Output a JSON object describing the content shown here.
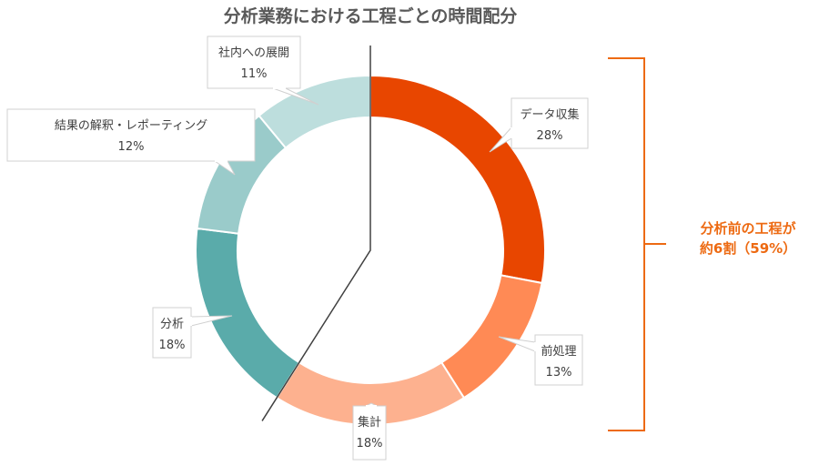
{
  "chart_data": {
    "type": "pie",
    "variant": "donut",
    "title": "分析業務における工程ごとの時間配分",
    "unit": "%",
    "slices": [
      {
        "label": "データ収集",
        "value": 28,
        "color": "#E84600"
      },
      {
        "label": "前処理",
        "value": 13,
        "color": "#FF8A55"
      },
      {
        "label": "集計",
        "value": 18,
        "color": "#FDB18F"
      },
      {
        "label": "分析",
        "value": 18,
        "color": "#5AABAA"
      },
      {
        "label": "結果の解釈・レポーティング",
        "value": 12,
        "color": "#9ACBCA"
      },
      {
        "label": "社内への展開",
        "value": 11,
        "color": "#BDDEDD"
      }
    ],
    "annotation": {
      "lines": [
        "分析前の工程が",
        "約6割（59%）"
      ],
      "covers_percent": 59,
      "color": "#ED6A12"
    }
  }
}
